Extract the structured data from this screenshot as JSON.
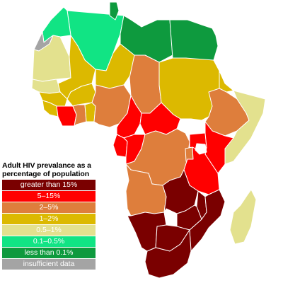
{
  "legend": {
    "title_line1": "Adult HIV prevalance as a",
    "title_line2": "percentage of population",
    "items": [
      {
        "label": "greater than 15%",
        "color": "#7a0000"
      },
      {
        "label": "5–15%",
        "color": "#ff0000"
      },
      {
        "label": "2–5%",
        "color": "#de7e3c"
      },
      {
        "label": "1–2%",
        "color": "#dcb900"
      },
      {
        "label": "0.5–1%",
        "color": "#e3e18e"
      },
      {
        "label": "0.1–0.5%",
        "color": "#11e484"
      },
      {
        "label": "less than 0.1%",
        "color": "#0e9a3e"
      },
      {
        "label": "insufficient data",
        "color": "#a4a4a4"
      }
    ]
  },
  "regions": [
    {
      "name": "western-sahara",
      "category": "insufficient data",
      "color": "#a4a4a4"
    },
    {
      "name": "morocco",
      "category": "0.1–0.5%",
      "color": "#11e484"
    },
    {
      "name": "algeria",
      "category": "0.1–0.5%",
      "color": "#11e484"
    },
    {
      "name": "tunisia",
      "category": "less than 0.1%",
      "color": "#0e9a3e"
    },
    {
      "name": "libya",
      "category": "less than 0.1%",
      "color": "#0e9a3e"
    },
    {
      "name": "egypt",
      "category": "less than 0.1%",
      "color": "#0e9a3e"
    },
    {
      "name": "mauritania",
      "category": "0.5–1%",
      "color": "#e3e18e"
    },
    {
      "name": "mali",
      "category": "1–2%",
      "color": "#dcb900"
    },
    {
      "name": "niger",
      "category": "1–2%",
      "color": "#dcb900"
    },
    {
      "name": "chad",
      "category": "2–5%",
      "color": "#de7e3c"
    },
    {
      "name": "sudan",
      "category": "1–2%",
      "color": "#dcb900"
    },
    {
      "name": "senegal",
      "category": "0.5–1%",
      "color": "#e3e18e"
    },
    {
      "name": "guinea",
      "category": "1–2%",
      "color": "#dcb900"
    },
    {
      "name": "burkina-faso",
      "category": "1–2%",
      "color": "#dcb900"
    },
    {
      "name": "ghana",
      "category": "2–5%",
      "color": "#de7e3c"
    },
    {
      "name": "togo-benin",
      "category": "1–2%",
      "color": "#dcb900"
    },
    {
      "name": "cote-divoire",
      "category": "5–15%",
      "color": "#ff0000"
    },
    {
      "name": "sierra-leone-liberia",
      "category": "1–2%",
      "color": "#dcb900"
    },
    {
      "name": "nigeria",
      "category": "2–5%",
      "color": "#de7e3c"
    },
    {
      "name": "cameroon",
      "category": "5–15%",
      "color": "#ff0000"
    },
    {
      "name": "central-african-republic",
      "category": "5–15%",
      "color": "#ff0000"
    },
    {
      "name": "ethiopia",
      "category": "2–5%",
      "color": "#de7e3c"
    },
    {
      "name": "eritrea",
      "category": "1–2%",
      "color": "#dcb900"
    },
    {
      "name": "somalia",
      "category": "0.5–1%",
      "color": "#e3e18e"
    },
    {
      "name": "gabon",
      "category": "5–15%",
      "color": "#ff0000"
    },
    {
      "name": "congo",
      "category": "5–15%",
      "color": "#ff0000"
    },
    {
      "name": "dr-congo",
      "category": "2–5%",
      "color": "#de7e3c"
    },
    {
      "name": "uganda",
      "category": "5–15%",
      "color": "#ff0000"
    },
    {
      "name": "kenya",
      "category": "5–15%",
      "color": "#ff0000"
    },
    {
      "name": "lake-victoria",
      "category": "",
      "color": "#ffffff"
    },
    {
      "name": "rwanda-burundi",
      "category": "2–5%",
      "color": "#de7e3c"
    },
    {
      "name": "tanzania",
      "category": "5–15%",
      "color": "#ff0000"
    },
    {
      "name": "angola",
      "category": "2–5%",
      "color": "#de7e3c"
    },
    {
      "name": "zambia",
      "category": "greater than 15%",
      "color": "#7a0000"
    },
    {
      "name": "malawi",
      "category": "greater than 15%",
      "color": "#7a0000"
    },
    {
      "name": "mozambique",
      "category": "greater than 15%",
      "color": "#7a0000"
    },
    {
      "name": "namibia",
      "category": "greater than 15%",
      "color": "#7a0000"
    },
    {
      "name": "botswana",
      "category": "greater than 15%",
      "color": "#7a0000"
    },
    {
      "name": "zimbabwe",
      "category": "greater than 15%",
      "color": "#7a0000"
    },
    {
      "name": "south-africa",
      "category": "greater than 15%",
      "color": "#7a0000"
    },
    {
      "name": "madagascar",
      "category": "0.5–1%",
      "color": "#e3e18e"
    }
  ]
}
